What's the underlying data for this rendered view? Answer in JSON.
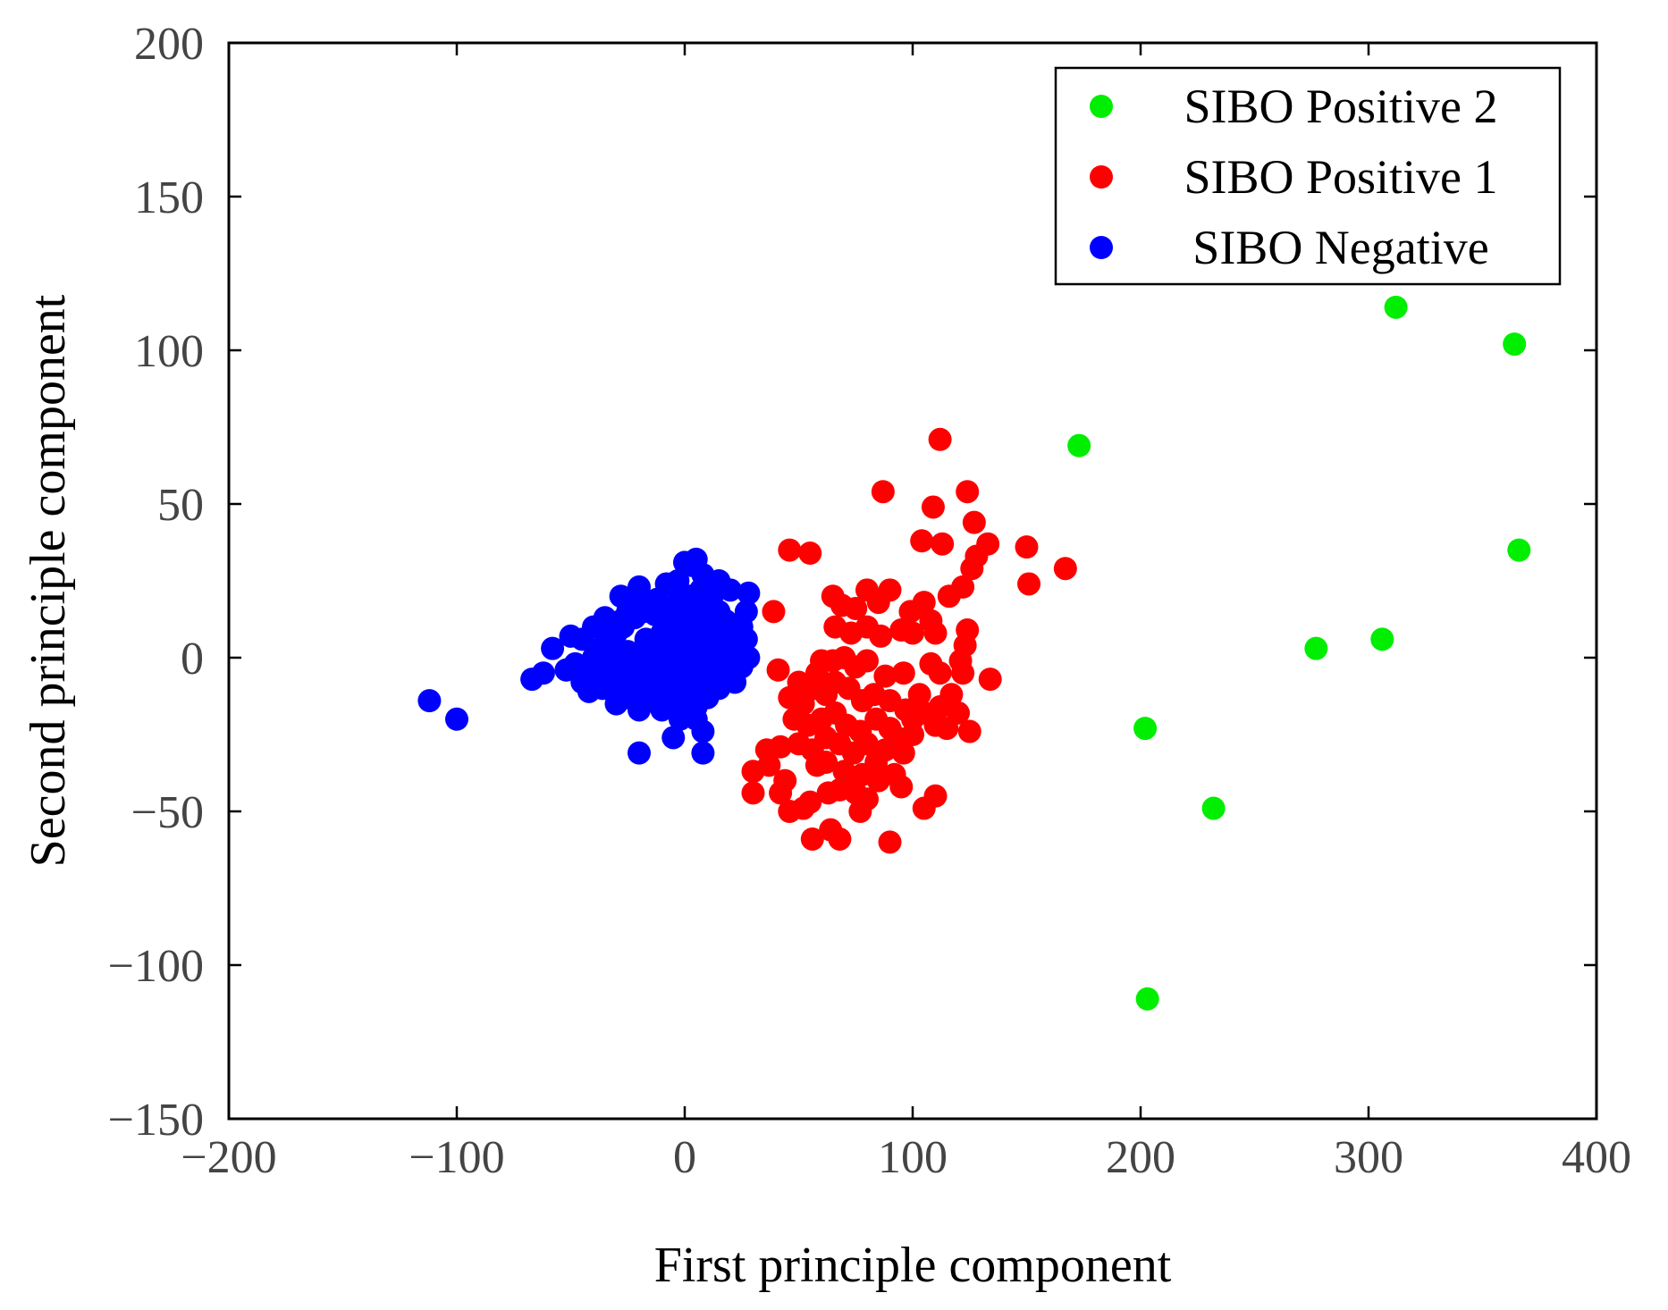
{
  "chart_data": {
    "type": "scatter",
    "xlabel": "First principle component",
    "ylabel": "Second principle component",
    "xlim": [
      -200,
      400
    ],
    "ylim": [
      -150,
      200
    ],
    "xticks": [
      -200,
      -100,
      0,
      100,
      200,
      300,
      400
    ],
    "yticks": [
      -150,
      -100,
      -50,
      0,
      50,
      100,
      150,
      200
    ],
    "xtick_labels": [
      "−200",
      "−100",
      "0",
      "100",
      "200",
      "300",
      "400"
    ],
    "ytick_labels": [
      "−150",
      "−100",
      "−50",
      "0",
      "50",
      "100",
      "150",
      "200"
    ],
    "legend_position": "top-right",
    "series": [
      {
        "name": "SIBO Positive 2",
        "color": "#00ee00",
        "points": [
          [
            173,
            69
          ],
          [
            312,
            114
          ],
          [
            364,
            102
          ],
          [
            366,
            35
          ],
          [
            277,
            3
          ],
          [
            306,
            6
          ],
          [
            202,
            -23
          ],
          [
            232,
            -49
          ],
          [
            203,
            -111
          ]
        ]
      },
      {
        "name": "SIBO Positive 1",
        "color": "#ff0000",
        "points": [
          [
            112,
            71
          ],
          [
            87,
            54
          ],
          [
            109,
            49
          ],
          [
            124,
            54
          ],
          [
            127,
            44
          ],
          [
            104,
            38
          ],
          [
            113,
            37
          ],
          [
            133,
            37
          ],
          [
            128,
            33
          ],
          [
            150,
            36
          ],
          [
            167,
            29
          ],
          [
            151,
            24
          ],
          [
            46,
            35
          ],
          [
            55,
            34
          ],
          [
            39,
            15
          ],
          [
            65,
            20
          ],
          [
            69,
            17
          ],
          [
            80,
            22
          ],
          [
            90,
            22
          ],
          [
            85,
            18
          ],
          [
            75,
            16
          ],
          [
            99,
            15
          ],
          [
            105,
            18
          ],
          [
            108,
            12
          ],
          [
            116,
            20
          ],
          [
            122,
            23
          ],
          [
            126,
            29
          ],
          [
            66,
            10
          ],
          [
            73,
            8
          ],
          [
            80,
            10
          ],
          [
            86,
            7
          ],
          [
            95,
            9
          ],
          [
            100,
            8
          ],
          [
            110,
            8
          ],
          [
            124,
            9
          ],
          [
            123,
            4
          ],
          [
            121,
            -1
          ],
          [
            134,
            -7
          ],
          [
            41,
            -4
          ],
          [
            50,
            -8
          ],
          [
            58,
            -5
          ],
          [
            60,
            -1
          ],
          [
            65,
            -1
          ],
          [
            70,
            0
          ],
          [
            75,
            -3
          ],
          [
            80,
            -1
          ],
          [
            88,
            -6
          ],
          [
            96,
            -5
          ],
          [
            108,
            -2
          ],
          [
            112,
            -5
          ],
          [
            122,
            -5
          ],
          [
            46,
            -13
          ],
          [
            52,
            -15
          ],
          [
            57,
            -10
          ],
          [
            62,
            -12
          ],
          [
            66,
            -8
          ],
          [
            72,
            -10
          ],
          [
            78,
            -14
          ],
          [
            83,
            -12
          ],
          [
            90,
            -14
          ],
          [
            97,
            -17
          ],
          [
            105,
            -18
          ],
          [
            112,
            -16
          ],
          [
            120,
            -18
          ],
          [
            48,
            -20
          ],
          [
            54,
            -22
          ],
          [
            60,
            -20
          ],
          [
            66,
            -18
          ],
          [
            71,
            -22
          ],
          [
            77,
            -24
          ],
          [
            84,
            -20
          ],
          [
            90,
            -23
          ],
          [
            100,
            -20
          ],
          [
            110,
            -22
          ],
          [
            125,
            -24
          ],
          [
            115,
            -23
          ],
          [
            36,
            -30
          ],
          [
            42,
            -29
          ],
          [
            50,
            -28
          ],
          [
            56,
            -30
          ],
          [
            62,
            -26
          ],
          [
            68,
            -28
          ],
          [
            74,
            -31
          ],
          [
            80,
            -28
          ],
          [
            88,
            -30
          ],
          [
            96,
            -31
          ],
          [
            30,
            -37
          ],
          [
            37,
            -35
          ],
          [
            44,
            -40
          ],
          [
            62,
            -34
          ],
          [
            70,
            -37
          ],
          [
            78,
            -38
          ],
          [
            84,
            -34
          ],
          [
            92,
            -38
          ],
          [
            30,
            -44
          ],
          [
            42,
            -44
          ],
          [
            55,
            -47
          ],
          [
            68,
            -43
          ],
          [
            75,
            -44
          ],
          [
            80,
            -46
          ],
          [
            95,
            -42
          ],
          [
            110,
            -45
          ],
          [
            105,
            -49
          ],
          [
            46,
            -50
          ],
          [
            52,
            -49
          ],
          [
            56,
            -59
          ],
          [
            64,
            -56
          ],
          [
            68,
            -59
          ],
          [
            90,
            -60
          ],
          [
            73,
            -40
          ],
          [
            85,
            -40
          ],
          [
            63,
            -44
          ],
          [
            77,
            -50
          ],
          [
            58,
            -35
          ],
          [
            93,
            -26
          ],
          [
            103,
            -12
          ],
          [
            117,
            -12
          ],
          [
            100,
            -25
          ]
        ]
      },
      {
        "name": "SIBO Negative",
        "color": "#0000ff",
        "points": [
          [
            -112,
            -14
          ],
          [
            -100,
            -20
          ],
          [
            -67,
            -7
          ],
          [
            -62,
            -5
          ],
          [
            -58,
            3
          ],
          [
            -52,
            -4
          ],
          [
            -48,
            -2
          ],
          [
            -50,
            7
          ],
          [
            -45,
            6
          ],
          [
            -40,
            10
          ],
          [
            -35,
            13
          ],
          [
            -40,
            0
          ],
          [
            -43,
            -4
          ],
          [
            -38,
            -7
          ],
          [
            -42,
            -11
          ],
          [
            -36,
            -10
          ],
          [
            -30,
            -15
          ],
          [
            -25,
            -13
          ],
          [
            -20,
            -17
          ],
          [
            -15,
            -14
          ],
          [
            -10,
            -17
          ],
          [
            -5,
            -13
          ],
          [
            0,
            -18
          ],
          [
            5,
            -16
          ],
          [
            10,
            -13
          ],
          [
            15,
            -10
          ],
          [
            20,
            -6
          ],
          [
            25,
            -3
          ],
          [
            28,
            0
          ],
          [
            27,
            6
          ],
          [
            25,
            10
          ],
          [
            27,
            15
          ],
          [
            28,
            21
          ],
          [
            20,
            22
          ],
          [
            15,
            25
          ],
          [
            12,
            20
          ],
          [
            8,
            27
          ],
          [
            3,
            30
          ],
          [
            5,
            32
          ],
          [
            0,
            31
          ],
          [
            -3,
            25
          ],
          [
            -8,
            24
          ],
          [
            -12,
            19
          ],
          [
            -17,
            18
          ],
          [
            -22,
            20
          ],
          [
            -25,
            15
          ],
          [
            -28,
            12
          ],
          [
            -30,
            8
          ],
          [
            -32,
            4
          ],
          [
            -34,
            -1
          ],
          [
            -30,
            -4
          ],
          [
            -27,
            -8
          ],
          [
            -22,
            -6
          ],
          [
            -18,
            -3
          ],
          [
            -14,
            -1
          ],
          [
            -10,
            2
          ],
          [
            -5,
            5
          ],
          [
            0,
            8
          ],
          [
            5,
            10
          ],
          [
            10,
            12
          ],
          [
            15,
            8
          ],
          [
            20,
            5
          ],
          [
            15,
            2
          ],
          [
            10,
            0
          ],
          [
            5,
            -3
          ],
          [
            0,
            -5
          ],
          [
            -5,
            -7
          ],
          [
            -10,
            -9
          ],
          [
            -15,
            -8
          ],
          [
            -20,
            -10
          ],
          [
            -25,
            -5
          ],
          [
            -20,
            0
          ],
          [
            -15,
            4
          ],
          [
            -10,
            8
          ],
          [
            -5,
            12
          ],
          [
            0,
            15
          ],
          [
            5,
            17
          ],
          [
            10,
            18
          ],
          [
            15,
            15
          ],
          [
            18,
            12
          ],
          [
            22,
            8
          ],
          [
            20,
            2
          ],
          [
            12,
            -3
          ],
          [
            8,
            -6
          ],
          [
            3,
            -9
          ],
          [
            -2,
            -11
          ],
          [
            -7,
            -12
          ],
          [
            -12,
            -12
          ],
          [
            -17,
            -11
          ],
          [
            -22,
            -13
          ],
          [
            -27,
            -11
          ],
          [
            -32,
            -7
          ],
          [
            -35,
            -3
          ],
          [
            -37,
            3
          ],
          [
            -33,
            7
          ],
          [
            -27,
            10
          ],
          [
            -22,
            13
          ],
          [
            -18,
            15
          ],
          [
            -13,
            14
          ],
          [
            -8,
            13
          ],
          [
            -3,
            18
          ],
          [
            2,
            20
          ],
          [
            7,
            22
          ],
          [
            12,
            24
          ],
          [
            -20,
            -31
          ],
          [
            -5,
            -26
          ],
          [
            8,
            -31
          ],
          [
            -2,
            -20
          ],
          [
            5,
            -20
          ],
          [
            8,
            -24
          ],
          [
            -8,
            -16
          ],
          [
            3,
            -13
          ],
          [
            13,
            -6
          ],
          [
            18,
            -3
          ],
          [
            22,
            -8
          ],
          [
            -45,
            -8
          ],
          [
            -28,
            20
          ],
          [
            -20,
            23
          ],
          [
            -10,
            17
          ],
          [
            -8,
            10
          ],
          [
            -3,
            3
          ],
          [
            2,
            -1
          ],
          [
            7,
            3
          ],
          [
            12,
            6
          ],
          [
            17,
            -1
          ],
          [
            -12,
            -4
          ],
          [
            -17,
            6
          ],
          [
            -25,
            2
          ],
          [
            -30,
            -1
          ],
          [
            -28,
            -13
          ],
          [
            -5,
            -2
          ],
          [
            0,
            2
          ],
          [
            5,
            6
          ],
          [
            -8,
            -5
          ],
          [
            -3,
            -8
          ]
        ]
      }
    ]
  }
}
